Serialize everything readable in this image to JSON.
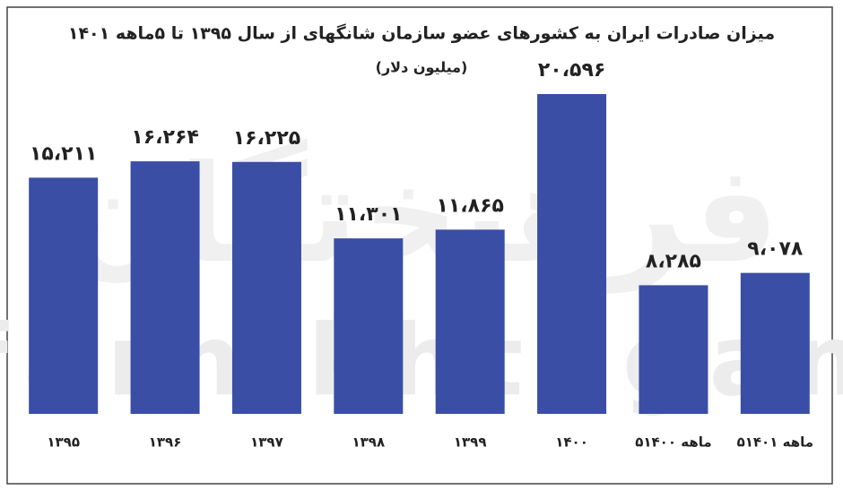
{
  "chart_data": {
    "type": "bar",
    "title": "میزان صادرات ایران به کشورهای عضو سازمان شانگهای از سال ۱۳۹۵ تا ۵ماهه ۱۴۰۱",
    "subtitle": "(میلیون دلار)",
    "watermark": "farhikhtegan",
    "watermark_fa": "فرهیختگان",
    "categories": [
      "۱۳۹۵",
      "۱۳۹۶",
      "۱۳۹۷",
      "۱۳۹۸",
      "۱۳۹۹",
      "۱۴۰۰",
      "۵ماهه ۱۴۰۰",
      "۵ماهه ۱۴۰۱"
    ],
    "values": [
      15211,
      16264,
      16225,
      11301,
      11865,
      20596,
      8285,
      9078
    ],
    "value_labels": [
      "۱۵،۲۱۱",
      "۱۶،۲۶۴",
      "۱۶،۲۲۵",
      "۱۱،۳۰۱",
      "۱۱،۸۶۵",
      "۲۰،۵۹۶",
      "۸،۲۸۵",
      "۹،۰۷۸"
    ],
    "color": "#3a4ea6"
  }
}
